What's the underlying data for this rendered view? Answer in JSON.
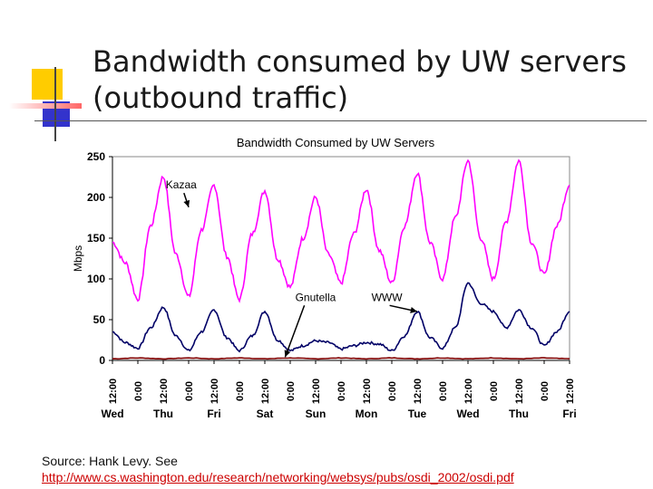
{
  "slide": {
    "title": "Bandwidth consumed by UW servers (outbound traffic)",
    "source_text": "Source: Hank Levy.  See",
    "source_url": "http://www.cs.washington.edu/research/networking/websys/pubs/osdi_2002/osdi.pdf"
  },
  "colors": {
    "kazaa": "#ff00ff",
    "www": "#000066",
    "gnutella": "#800000",
    "url": "#cc0000",
    "deco_yellow": "#ffcc00",
    "deco_blue": "#3333cc",
    "deco_red": "#ff6666"
  },
  "chart_data": {
    "type": "line",
    "title": "Bandwidth Consumed by UW Servers",
    "ylabel": "Mbps",
    "xlabel": "",
    "ylim": [
      0,
      250
    ],
    "y_ticks": [
      "250",
      "200",
      "150",
      "100",
      "50",
      "0"
    ],
    "x_tick_labels": [
      "12:00",
      "0:00",
      "12:00",
      "0:00",
      "12:00",
      "0:00",
      "12:00",
      "0:00",
      "12:00",
      "0:00",
      "12:00",
      "0:00",
      "12:00",
      "0:00",
      "12:00",
      "0:00",
      "12:00",
      "0:00",
      "12:00"
    ],
    "days": [
      "Wed",
      "Thu",
      "Fri",
      "Sat",
      "Sun",
      "Mon",
      "Tue",
      "Wed",
      "Thu",
      "Fri"
    ],
    "grid": false,
    "series": [
      {
        "name": "Kazaa",
        "color_key": "kazaa",
        "x": [
          0,
          0.5,
          1,
          1.5,
          2,
          2.5,
          3,
          3.5,
          4,
          4.5,
          5,
          5.5,
          6,
          6.5,
          7,
          7.5,
          8,
          8.5,
          9,
          9.5,
          10,
          10.5,
          11,
          11.5,
          12,
          12.5,
          13,
          13.5,
          14,
          14.5,
          15,
          15.5,
          16,
          16.5,
          17,
          17.5,
          18
        ],
        "y": [
          145,
          120,
          75,
          165,
          225,
          130,
          78,
          160,
          215,
          128,
          75,
          155,
          208,
          125,
          90,
          150,
          200,
          130,
          95,
          155,
          210,
          135,
          95,
          165,
          230,
          145,
          100,
          175,
          245,
          150,
          100,
          170,
          245,
          145,
          105,
          165,
          215
        ]
      },
      {
        "name": "WWW",
        "color_key": "www",
        "x": [
          0,
          0.5,
          1,
          1.5,
          2,
          2.5,
          3,
          3.5,
          4,
          4.5,
          5,
          5.5,
          6,
          6.5,
          7,
          7.5,
          8,
          8.5,
          9,
          9.5,
          10,
          10.5,
          11,
          11.5,
          12,
          12.5,
          13,
          13.5,
          14,
          14.5,
          15,
          15.5,
          16,
          16.5,
          17,
          17.5,
          18
        ],
        "y": [
          35,
          22,
          15,
          40,
          65,
          30,
          12,
          35,
          62,
          28,
          12,
          30,
          60,
          25,
          12,
          18,
          24,
          22,
          14,
          18,
          22,
          20,
          12,
          30,
          60,
          28,
          15,
          40,
          95,
          70,
          60,
          40,
          62,
          40,
          18,
          35,
          60
        ]
      },
      {
        "name": "Gnutella",
        "color_key": "gnutella",
        "x": [
          0,
          1,
          2,
          3,
          4,
          5,
          6,
          7,
          8,
          9,
          10,
          11,
          12,
          13,
          14,
          15,
          16,
          17,
          18
        ],
        "y": [
          2,
          3,
          2,
          3,
          2,
          3,
          2,
          3,
          2,
          3,
          2,
          3,
          2,
          3,
          2,
          3,
          2,
          3,
          2
        ]
      }
    ],
    "annotations": [
      {
        "text": "Kazaa",
        "x": 2.1,
        "y": 211,
        "target_x": 3.0,
        "target_y": 188
      },
      {
        "text": "Gnutella",
        "x": 7.2,
        "y": 73,
        "target_x": 6.8,
        "target_y": 4
      },
      {
        "text": "WWW",
        "x": 10.2,
        "y": 73,
        "target_x": 12.0,
        "target_y": 60
      }
    ]
  }
}
